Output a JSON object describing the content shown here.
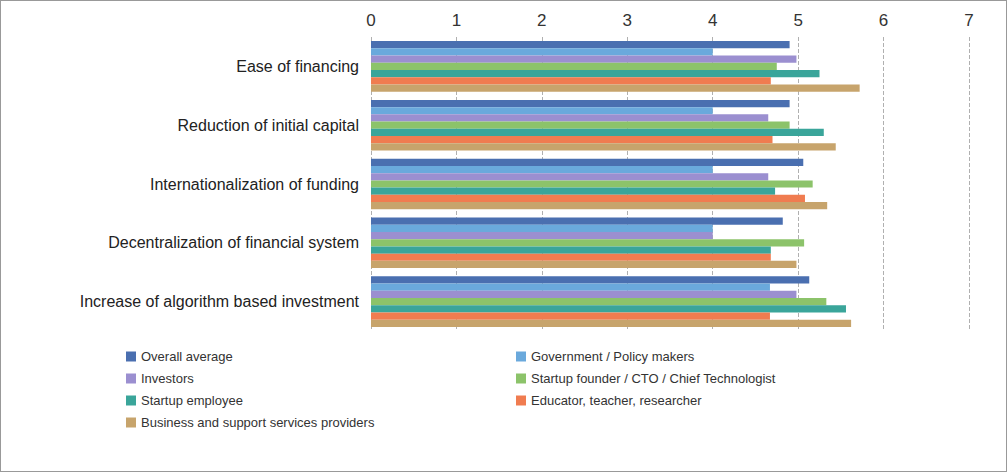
{
  "chart_data": {
    "type": "bar",
    "orientation": "horizontal",
    "categories": [
      "Ease of financing",
      "Reduction of initial capital",
      "Internationalization of funding",
      "Decentralization of financial system",
      "Increase of algorithm based investment"
    ],
    "series": [
      {
        "name": "Overall average",
        "color": "#4a6fb0",
        "values": [
          4.9,
          4.9,
          5.06,
          4.82,
          5.13
        ]
      },
      {
        "name": "Government / Policy makers",
        "color": "#6aa9dc",
        "values": [
          4.0,
          4.0,
          4.0,
          4.0,
          4.67
        ]
      },
      {
        "name": "Investors",
        "color": "#9b8fd0",
        "values": [
          4.98,
          4.65,
          4.65,
          4.0,
          4.98
        ]
      },
      {
        "name": "Startup founder / CTO / Chief Technologist",
        "color": "#8cc36a",
        "values": [
          4.75,
          4.9,
          5.17,
          5.07,
          5.33
        ]
      },
      {
        "name": "Startup employee",
        "color": "#3aa59a",
        "values": [
          5.25,
          5.3,
          4.73,
          4.68,
          5.56
        ]
      },
      {
        "name": "Educator, teacher, researcher",
        "color": "#f07c50",
        "values": [
          4.68,
          4.7,
          5.08,
          4.68,
          4.67
        ]
      },
      {
        "name": "Business and support services providers",
        "color": "#c7a46c",
        "values": [
          5.72,
          5.44,
          5.34,
          4.98,
          5.62
        ]
      }
    ],
    "xlim": [
      0,
      7
    ],
    "xticks": [
      0,
      1,
      2,
      3,
      4,
      5,
      6,
      7
    ],
    "grid": true,
    "legend": "bottom"
  }
}
